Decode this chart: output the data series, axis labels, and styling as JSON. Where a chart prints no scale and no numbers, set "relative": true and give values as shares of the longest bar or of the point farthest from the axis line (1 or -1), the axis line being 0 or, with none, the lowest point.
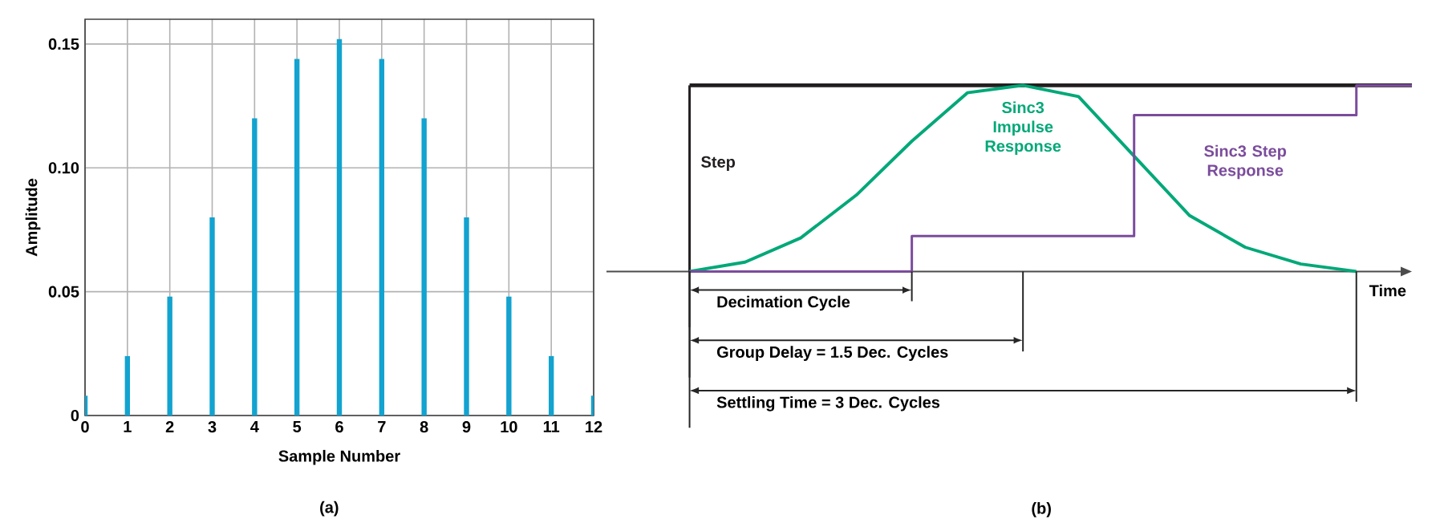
{
  "chart_data": [
    {
      "type": "bar",
      "x": [
        0,
        1,
        2,
        3,
        4,
        5,
        6,
        7,
        8,
        9,
        10,
        11,
        12
      ],
      "values": [
        0.008,
        0.024,
        0.048,
        0.08,
        0.12,
        0.144,
        0.152,
        0.144,
        0.12,
        0.08,
        0.048,
        0.024,
        0.008
      ],
      "color": "#12a3d0",
      "xlabel": "Sample Number",
      "ylabel": "Amplitude",
      "xlim": [
        0,
        12
      ],
      "ylim": [
        0,
        0.16
      ],
      "xticks": [
        0,
        1,
        2,
        3,
        4,
        5,
        6,
        7,
        8,
        9,
        10,
        11,
        12
      ],
      "yticks": [
        0,
        0.05,
        {
          "value": 0.1,
          "label": "0.10"
        },
        0.15
      ],
      "grid": true,
      "annotations": [
        "(a)"
      ]
    },
    {
      "type": "line",
      "relative": true,
      "xlabel": "Time",
      "categories": [
        null,
        null,
        null,
        null,
        null,
        null,
        null,
        null,
        null,
        null,
        null,
        null,
        null,
        null
      ],
      "series": [
        {
          "name": "Step",
          "type": "step",
          "color": "#231f20",
          "values": [
            1,
            1,
            1,
            1,
            1,
            1,
            1,
            1,
            1,
            1,
            1,
            1,
            1,
            1
          ]
        },
        {
          "name": "Sinc3 Impulse Response",
          "type": "line",
          "color": "#00a878",
          "values": [
            0,
            0.05,
            0.18,
            0.41,
            0.7,
            0.96,
            1.0,
            0.94,
            0.62,
            0.3,
            0.13,
            0.04,
            0,
            null
          ]
        },
        {
          "name": "Sinc3 Step Response",
          "type": "step",
          "color": "#7b4c9c",
          "values": [
            0,
            0,
            0,
            0,
            0.19,
            0.19,
            0.19,
            0.19,
            0.84,
            0.84,
            0.84,
            0.84,
            1,
            1
          ]
        }
      ],
      "annotations": [
        "Decimation Cycle",
        "Group Delay = 1.5 Dec. Cycles",
        "Settling Time = 3 Dec. Cycles",
        "(b)"
      ]
    }
  ]
}
